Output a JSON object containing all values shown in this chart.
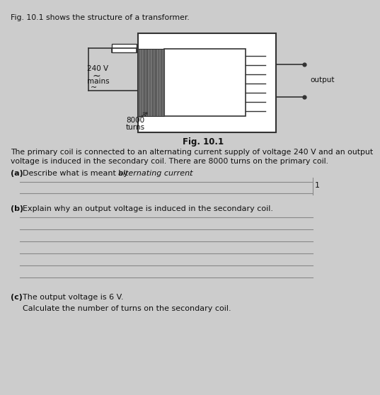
{
  "bg_color": "#cccccc",
  "title_text": "Fig. 10.1 shows the structure of a transformer.",
  "fig_label": "Fig. 10.1",
  "label_240v": "240 V",
  "label_mains": "mains",
  "label_8000": "8000",
  "label_turns": "turns",
  "label_output": "output",
  "intro_line1": "The primary coil is connected to an alternating current supply of voltage 240 V and an output",
  "intro_line2": "voltage is induced in the secondary coil. There are 8000 turns on the primary coil.",
  "qa_prefix": "(a)   Describe what is meant by ",
  "qa_italic": "alternating current",
  "qa_suffix": ".",
  "qb_prefix": "(b)   Explain why an output voltage is induced in the secondary coil.",
  "qc1_text": "(c)   The output voltage is 6 V.",
  "qc2_text": "      Calculate the number of turns on the secondary coil.",
  "line_color": "#888888",
  "edge_color": "#333333",
  "text_color": "#111111",
  "margin_mark": "1"
}
